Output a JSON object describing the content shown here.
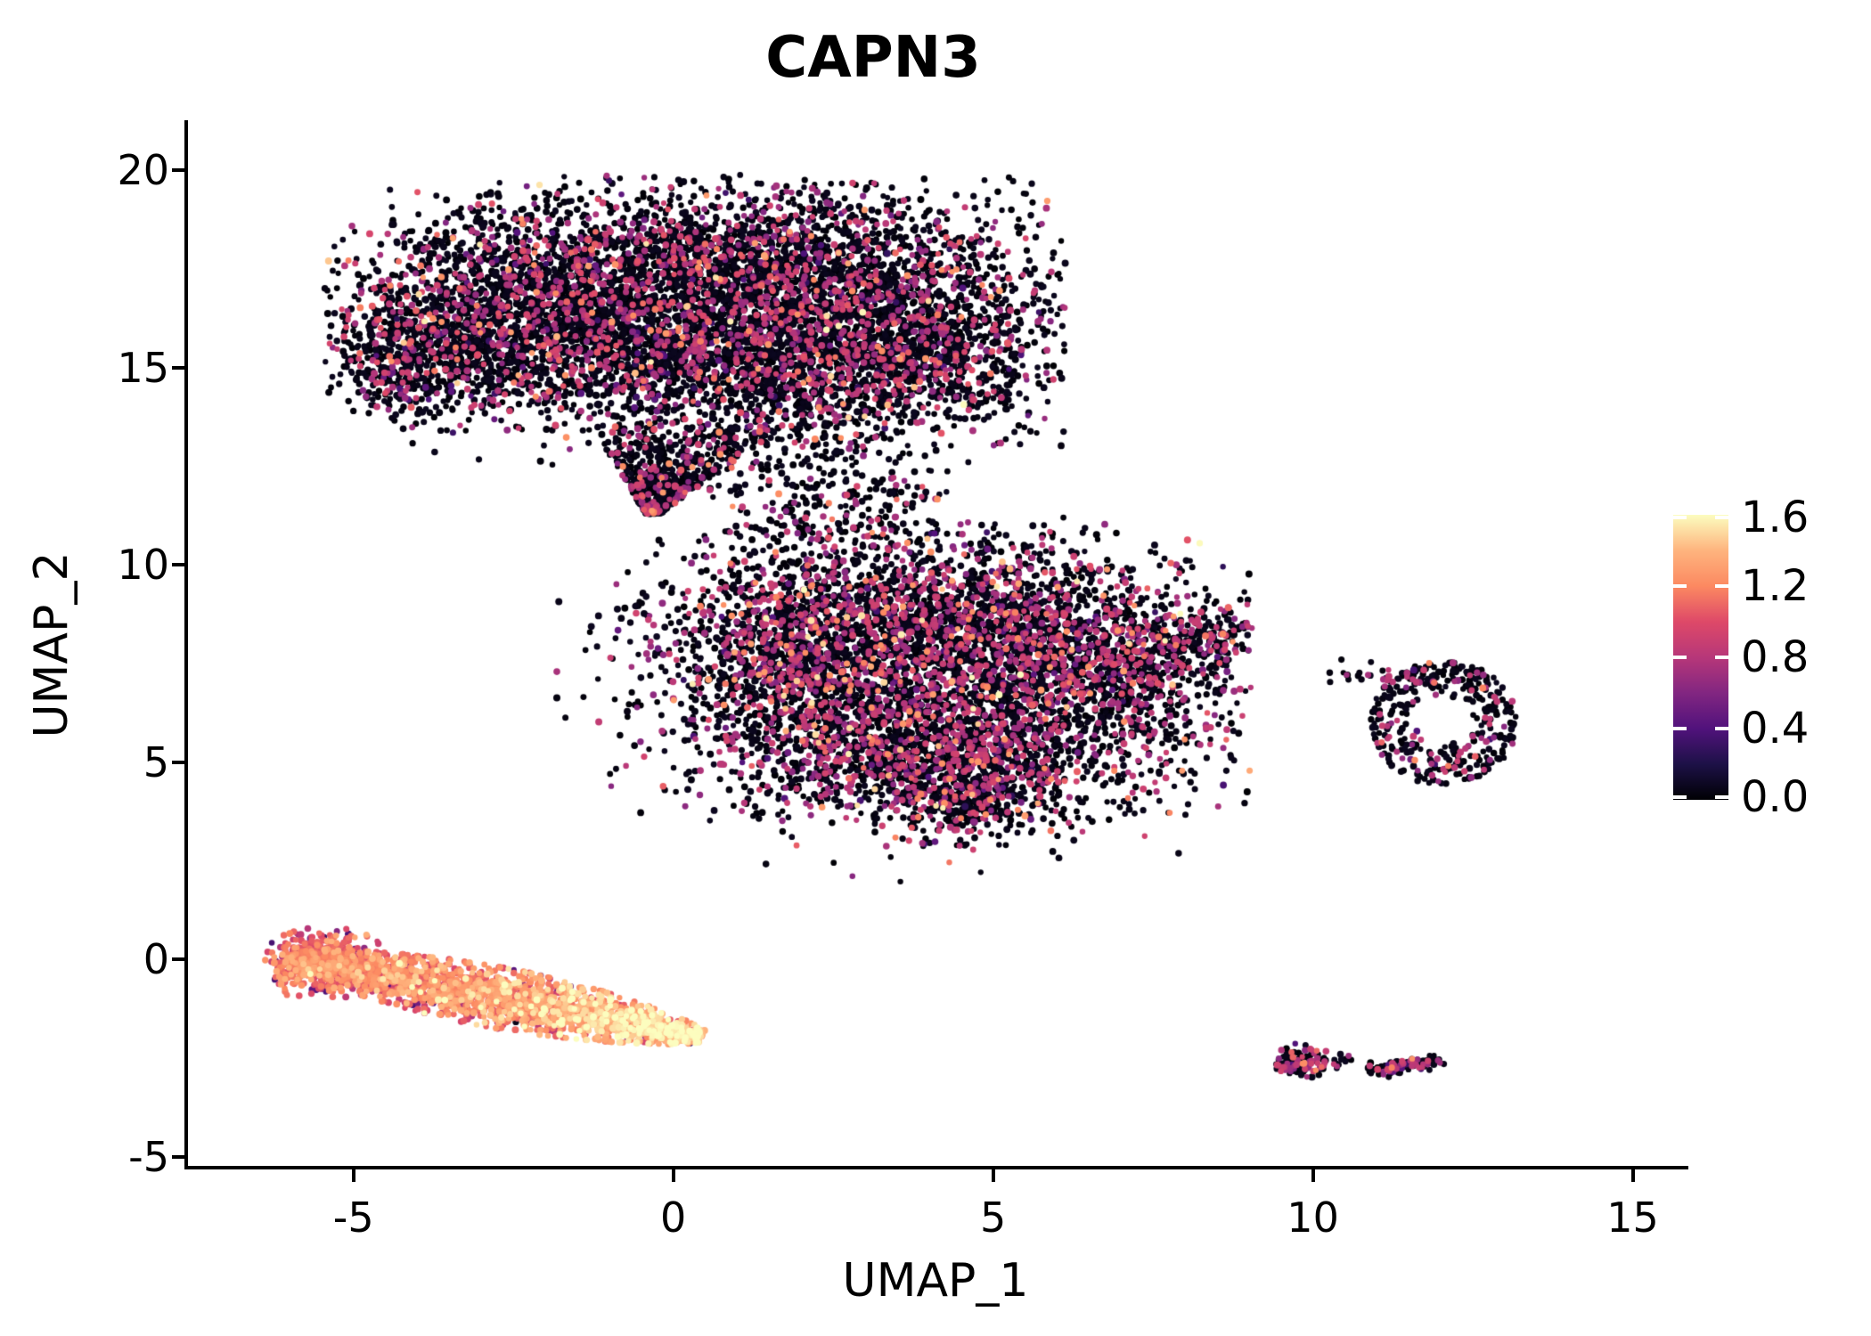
{
  "chart_data": {
    "type": "scatter",
    "title": "CAPN3",
    "xlabel": "UMAP_1",
    "ylabel": "UMAP_2",
    "xlim": [
      -7.6,
      15.8
    ],
    "ylim": [
      -5.25,
      21.2
    ],
    "grid": false,
    "background": "#ffffff",
    "point_color_low": "#000004",
    "point_color_mid": "#b73779",
    "point_color_high": "#fcfdbf",
    "x_ticks": [
      {
        "value": -5,
        "label": "-5"
      },
      {
        "value": 0,
        "label": "0"
      },
      {
        "value": 5,
        "label": "5"
      },
      {
        "value": 10,
        "label": "10"
      },
      {
        "value": 15,
        "label": "15"
      }
    ],
    "y_ticks": [
      {
        "value": -5,
        "label": "-5"
      },
      {
        "value": 0,
        "label": "0"
      },
      {
        "value": 5,
        "label": "5"
      },
      {
        "value": 10,
        "label": "10"
      },
      {
        "value": 15,
        "label": "15"
      },
      {
        "value": 20,
        "label": "20"
      }
    ],
    "colorbar": {
      "vmin": 0.0,
      "vmax": 1.6,
      "colormap": "magma",
      "ticks": [
        {
          "value": 1.6,
          "label": "1.6"
        },
        {
          "value": 1.2,
          "label": "1.2"
        },
        {
          "value": 0.8,
          "label": "0.8"
        },
        {
          "value": 0.4,
          "label": "0.4"
        },
        {
          "value": 0.0,
          "label": "0.0"
        }
      ],
      "gradient_stops": [
        [
          0.0,
          "#000004"
        ],
        [
          0.125,
          "#1d1147"
        ],
        [
          0.25,
          "#51127c"
        ],
        [
          0.375,
          "#822681"
        ],
        [
          0.5,
          "#b73779"
        ],
        [
          0.625,
          "#de4968"
        ],
        [
          0.75,
          "#fc8961"
        ],
        [
          0.875,
          "#feb47e"
        ],
        [
          1.0,
          "#fcfdbf"
        ]
      ]
    },
    "clusters": [
      {
        "name": "upper-main-cluster",
        "model": "lobes",
        "n": 7800,
        "lobes": [
          [
            -2.2,
            16.6,
            1.5,
            1.25,
            22
          ],
          [
            0.8,
            17.4,
            1.8,
            1.15,
            26
          ],
          [
            3.2,
            16.5,
            1.4,
            1.35,
            20
          ],
          [
            -0.6,
            15.3,
            1.6,
            0.95,
            14
          ],
          [
            2.2,
            14.9,
            1.3,
            0.85,
            10
          ],
          [
            -3.6,
            15.6,
            0.8,
            0.85,
            5
          ],
          [
            -4.25,
            14.9,
            0.5,
            0.6,
            2
          ],
          [
            4.35,
            15.1,
            0.7,
            0.9,
            4
          ]
        ],
        "clip": [
          -5.45,
          6.15,
          12.25,
          19.9
        ],
        "values": {
          "zero": 0.77,
          "zero_max": 0.08,
          "ranges": [
            [
              0.6,
              0.95,
              74
            ],
            [
              0.25,
              0.55,
              8
            ],
            [
              0.95,
              1.05,
              8
            ],
            [
              1.05,
              1.3,
              8
            ],
            [
              1.3,
              1.6,
              2
            ]
          ]
        }
      },
      {
        "name": "upper-funnel-tail",
        "model": "funnel",
        "n": 620,
        "tip": [
          -0.32,
          11.3
        ],
        "height": 2.25,
        "drift": 0.55,
        "hw0": 0.12,
        "hw1": 1.4,
        "t_pow": 1.2,
        "values": {
          "zero": 0.8,
          "zero_max": 0.08,
          "ranges": [
            [
              0.6,
              0.95,
              85
            ],
            [
              1.0,
              1.3,
              15
            ]
          ]
        }
      },
      {
        "name": "bridge-scatter",
        "model": "lobes",
        "n": 310,
        "lobes": [
          [
            2.3,
            12.75,
            0.95,
            0.85,
            45
          ],
          [
            3.05,
            11.55,
            0.9,
            0.7,
            40
          ],
          [
            1.6,
            11.05,
            0.55,
            0.45,
            15
          ]
        ],
        "clip": [
          0.55,
          4.3,
          10.55,
          14.0
        ],
        "values": {
          "zero": 0.85,
          "zero_max": 0.08,
          "ranges": [
            [
              0.6,
              0.95,
              90
            ],
            [
              1.0,
              1.25,
              10
            ]
          ]
        }
      },
      {
        "name": "middle-main-cluster",
        "model": "lobes",
        "n": 6700,
        "lobes": [
          [
            3.0,
            8.8,
            1.6,
            1.05,
            17
          ],
          [
            5.4,
            8.4,
            1.6,
            1.15,
            18
          ],
          [
            2.6,
            6.6,
            1.45,
            1.25,
            16
          ],
          [
            5.2,
            6.0,
            1.7,
            1.25,
            18
          ],
          [
            3.9,
            4.9,
            1.4,
            0.8,
            12
          ],
          [
            6.9,
            7.4,
            1.0,
            0.95,
            8
          ],
          [
            1.6,
            7.8,
            0.85,
            0.95,
            6
          ],
          [
            4.6,
            4.1,
            0.5,
            0.45,
            3
          ],
          [
            7.9,
            8.05,
            0.6,
            0.4,
            2
          ]
        ],
        "clip": [
          -1.85,
          9.05,
          1.95,
          11.1
        ],
        "values": {
          "zero": 0.7,
          "zero_max": 0.08,
          "ranges": [
            [
              0.6,
              0.95,
              80
            ],
            [
              0.25,
              0.55,
              6
            ],
            [
              1.0,
              1.3,
              11
            ],
            [
              1.3,
              1.6,
              3
            ]
          ]
        }
      },
      {
        "name": "middle-right-beak",
        "model": "line",
        "n": 30,
        "p0": [
          7.6,
          7.95
        ],
        "p1": [
          8.95,
          8.3
        ],
        "jitter": 0.15,
        "values": {
          "zero": 0.75,
          "zero_max": 0.08,
          "ranges": [
            [
              0.6,
              0.9,
              100
            ]
          ]
        }
      },
      {
        "name": "middle-bottom-spike",
        "model": "line",
        "n": 18,
        "p0": [
          4.3,
          4.15
        ],
        "p1": [
          4.52,
          3.42
        ],
        "jitter": 0.11,
        "values": {
          "zero": 0.6,
          "zero_max": 0.08,
          "ranges": [
            [
              0.6,
              0.9,
              50
            ],
            [
              1.0,
              1.25,
              50
            ]
          ]
        }
      },
      {
        "name": "right-ring-cluster",
        "model": "ring",
        "n": 355,
        "center": [
          12.05,
          6.0
        ],
        "r_inner": 0.45,
        "r_outer": 1.38,
        "rx": 0.83,
        "ry": 1.15,
        "bias": 0.55,
        "clip": [
          10.85,
          13.3,
          4.35,
          7.65
        ],
        "values": {
          "zero": 0.78,
          "zero_max": 0.08,
          "ranges": [
            [
              0.6,
              0.9,
              78
            ],
            [
              0.3,
              0.55,
              8
            ],
            [
              1.05,
              1.25,
              14
            ]
          ]
        }
      },
      {
        "name": "right-ring-arm",
        "model": "line",
        "n": 36,
        "p0": [
          10.35,
          7.32
        ],
        "p1": [
          11.7,
          7.12
        ],
        "jitter": 0.13,
        "values": {
          "zero": 0.8,
          "zero_max": 0.08,
          "ranges": [
            [
              0.6,
              0.9,
              100
            ]
          ]
        }
      },
      {
        "name": "orange-strip-cluster",
        "model": "strip",
        "n": 2480,
        "p0": [
          -6.05,
          0.05
        ],
        "p1": [
          0.45,
          -1.95
        ],
        "hw0": 0.15,
        "hw1": 0.6,
        "value_base": [
          1.02,
          0.4
        ],
        "value_noise": 0.17,
        "override_prob": 0.05,
        "override_ranges": [
          [
            0.25,
            0.7,
            45
          ],
          [
            0.75,
            1.0,
            40
          ],
          [
            0.02,
            0.12,
            15
          ]
        ]
      },
      {
        "name": "orange-strip-head",
        "model": "lobes",
        "n": 420,
        "lobes": [
          [
            -5.6,
            -0.05,
            0.4,
            0.38,
            100
          ]
        ],
        "clip": [
          -6.4,
          -4.6,
          -0.95,
          0.8
        ],
        "values": {
          "zero": 0.008,
          "zero_max": 0.05,
          "ranges": [
            [
              0.95,
              1.2,
              62
            ],
            [
              0.78,
              0.95,
              16
            ],
            [
              1.2,
              1.4,
              14
            ],
            [
              0.3,
              0.65,
              8
            ]
          ]
        }
      },
      {
        "name": "bottom-right-blob-left",
        "model": "lobes",
        "n": 125,
        "lobes": [
          [
            9.85,
            -2.6,
            0.3,
            0.19,
            100
          ]
        ],
        "clip": [
          9.35,
          10.4,
          -3.15,
          -2.05
        ],
        "values": {
          "zero": 0.62,
          "zero_max": 0.08,
          "ranges": [
            [
              0.6,
              0.95,
              78
            ],
            [
              0.3,
              0.55,
              8
            ],
            [
              1.05,
              1.3,
              14
            ]
          ]
        }
      },
      {
        "name": "bottom-right-dot",
        "model": "lobes",
        "n": 7,
        "lobes": [
          [
            10.55,
            -2.5,
            0.08,
            0.06,
            100
          ]
        ],
        "clip": [
          10.3,
          10.8,
          -2.8,
          -2.2
        ],
        "values": {
          "zero": 0.95,
          "zero_max": 0.08,
          "ranges": [
            [
              0.6,
              0.9,
              100
            ]
          ]
        }
      },
      {
        "name": "bottom-right-blob-right",
        "model": "line",
        "n": 108,
        "p0": [
          10.92,
          -2.84
        ],
        "p1": [
          11.97,
          -2.52
        ],
        "jitter": 0.1,
        "values": {
          "zero": 0.6,
          "zero_max": 0.08,
          "ranges": [
            [
              0.6,
              0.95,
              80
            ],
            [
              1.05,
              1.3,
              10
            ],
            [
              0.3,
              0.55,
              10
            ]
          ]
        }
      }
    ],
    "singles": [
      [
        5.98,
        3.76,
        0.85
      ],
      [
        6.55,
        3.5,
        0.02
      ],
      [
        -0.3,
        11.35,
        1.18
      ],
      [
        0.4,
        10.6,
        0.02
      ],
      [
        1.1,
        10.4,
        0.02
      ],
      [
        -5.0,
        13.9,
        0.02
      ],
      [
        -5.35,
        14.5,
        0.02
      ],
      [
        6.1,
        11.2,
        0.02
      ],
      [
        3.4,
        2.6,
        0.02
      ],
      [
        5.2,
        2.9,
        0.02
      ]
    ]
  }
}
